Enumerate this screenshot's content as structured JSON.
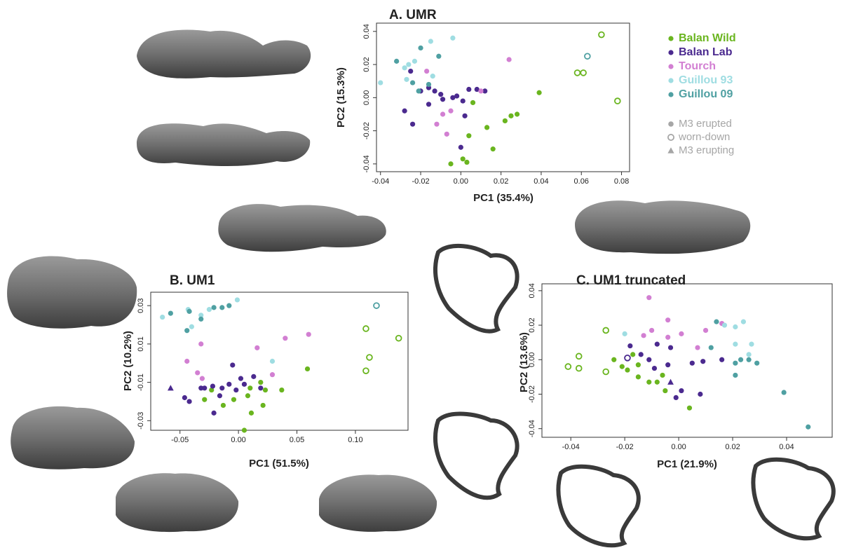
{
  "chart_data": [
    {
      "type": "scatter",
      "title": "A. UMR",
      "xlabel": "PC1 (35.4%)",
      "ylabel": "PC2 (15.3%)",
      "xlim": [
        -0.042,
        0.084
      ],
      "ylim": [
        -0.0447,
        0.045
      ],
      "xticks": [
        -0.04,
        -0.02,
        {
          "value": 0,
          "label": "0.00"
        },
        0.02,
        0.04,
        0.06,
        0.08
      ],
      "yticks": [
        -0.04,
        -0.02,
        {
          "value": 0,
          "label": "0.00"
        },
        0.02,
        0.04
      ],
      "series": [
        {
          "name": "Balan Wild",
          "color": "#6ab51f",
          "x": [
            0.039,
            0.028,
            0.025,
            0.022,
            0.013,
            0.006,
            0.004,
            0.016,
            0.003,
            -0.005,
            0.001,
            0.07,
            0.058,
            0.061,
            0.078
          ],
          "values": [
            0.003,
            -0.01,
            -0.011,
            -0.014,
            -0.018,
            -0.003,
            -0.023,
            -0.031,
            -0.039,
            -0.04,
            -0.037,
            0.038,
            0.015,
            0.015,
            -0.002
          ],
          "markers": [
            "filled",
            "filled",
            "filled",
            "filled",
            "filled",
            "filled",
            "filled",
            "filled",
            "filled",
            "filled",
            "filled",
            "open",
            "open",
            "open",
            "open"
          ]
        },
        {
          "name": "Balan Lab",
          "color": "#4b2a8f",
          "x": [
            -0.028,
            -0.024,
            -0.025,
            -0.016,
            -0.013,
            -0.01,
            -0.004,
            -0.002,
            0.001,
            0.004,
            0.008,
            0.012,
            0.002,
            0.0,
            -0.016,
            -0.009,
            -0.02
          ],
          "values": [
            -0.008,
            -0.016,
            0.016,
            0.006,
            0.004,
            0.002,
            0.0,
            0.001,
            -0.002,
            0.005,
            0.005,
            0.004,
            -0.011,
            -0.03,
            -0.004,
            -0.001,
            0.004
          ],
          "markers": [
            "filled",
            "filled",
            "filled",
            "filled",
            "filled",
            "filled",
            "filled",
            "filled",
            "filled",
            "filled",
            "filled",
            "filled",
            "filled",
            "filled",
            "filled",
            "filled",
            "filled"
          ]
        },
        {
          "name": "Tourch",
          "color": "#d27fd2",
          "x": [
            0.024,
            -0.009,
            -0.012,
            -0.007,
            -0.017,
            -0.005,
            0.01
          ],
          "values": [
            0.023,
            -0.01,
            -0.016,
            -0.022,
            0.016,
            -0.008,
            0.004
          ],
          "markers": [
            "filled",
            "filled",
            "filled",
            "filled",
            "filled",
            "filled",
            "filled"
          ]
        },
        {
          "name": "Guillou 93",
          "color": "#9fdde2",
          "x": [
            -0.04,
            -0.028,
            -0.026,
            -0.023,
            -0.015,
            -0.004,
            -0.027,
            -0.014
          ],
          "values": [
            0.009,
            0.018,
            0.02,
            0.022,
            0.034,
            0.036,
            0.011,
            0.013
          ],
          "markers": [
            "filled",
            "filled",
            "filled",
            "filled",
            "filled",
            "filled",
            "filled",
            "filled"
          ]
        },
        {
          "name": "Guillou 09",
          "color": "#4fa0a2",
          "x": [
            -0.032,
            -0.02,
            -0.011,
            -0.024,
            -0.021,
            -0.016,
            0.063
          ],
          "values": [
            0.022,
            0.03,
            0.025,
            0.009,
            0.004,
            0.008,
            0.025
          ],
          "markers": [
            "filled",
            "filled",
            "filled",
            "filled",
            "filled",
            "filled",
            "open"
          ]
        }
      ],
      "shape_legend_color": "#a6a6a6",
      "shape_legend": [
        {
          "label": "M3 erupted",
          "marker": "filled"
        },
        {
          "label": "worn-down",
          "marker": "open"
        },
        {
          "label": "M3 erupting",
          "marker": "triangle"
        }
      ]
    },
    {
      "type": "scatter",
      "title": "B. UM1",
      "xlabel": "PC1 (51.5%)",
      "ylabel": "PC2 (10.2%)",
      "xlim": [
        -0.075,
        0.145
      ],
      "ylim": [
        -0.035,
        0.037
      ],
      "xticks": [
        -0.05,
        {
          "value": 0,
          "label": "0.00"
        },
        0.05,
        {
          "value": 0.1,
          "label": "0.10"
        }
      ],
      "yticks": [
        -0.03,
        -0.01,
        0.01,
        0.03
      ],
      "series": [
        {
          "color": "#6ab51f",
          "x": [
            0.059,
            -0.029,
            -0.023,
            -0.013,
            -0.004,
            0.01,
            0.019,
            0.021,
            0.011,
            0.005,
            0.037,
            0.008,
            0.023,
            0.109,
            0.112,
            0.109,
            0.137
          ],
          "values": [
            -0.003,
            -0.019,
            -0.014,
            -0.022,
            -0.019,
            -0.013,
            -0.01,
            -0.022,
            -0.026,
            -0.035,
            -0.014,
            -0.017,
            -0.014,
            0.018,
            0.003,
            -0.004,
            0.013
          ],
          "markers": [
            "filled",
            "filled",
            "filled",
            "filled",
            "filled",
            "filled",
            "filled",
            "filled",
            "filled",
            "filled",
            "filled",
            "filled",
            "filled",
            "open",
            "open",
            "open",
            "open"
          ]
        },
        {
          "color": "#4b2a8f",
          "x": [
            -0.058,
            -0.046,
            -0.042,
            -0.032,
            -0.029,
            -0.022,
            -0.014,
            -0.008,
            -0.002,
            0.002,
            0.005,
            0.013,
            -0.005,
            -0.021,
            -0.016,
            0.019
          ],
          "values": [
            -0.013,
            -0.018,
            -0.02,
            -0.013,
            -0.013,
            -0.012,
            -0.013,
            -0.011,
            -0.014,
            -0.008,
            -0.011,
            -0.007,
            -0.001,
            -0.026,
            -0.017,
            -0.013
          ],
          "markers": [
            "triangle",
            "filled",
            "filled",
            "filled",
            "filled",
            "filled",
            "filled",
            "filled",
            "filled",
            "filled",
            "filled",
            "filled",
            "filled",
            "filled",
            "filled",
            "filled"
          ]
        },
        {
          "color": "#d27fd2",
          "x": [
            0.016,
            0.04,
            0.06,
            -0.044,
            -0.032,
            -0.031,
            0.029,
            -0.035
          ],
          "values": [
            0.008,
            0.013,
            0.015,
            0.001,
            0.01,
            -0.008,
            -0.006,
            -0.005
          ],
          "markers": [
            "filled",
            "filled",
            "filled",
            "filled",
            "filled",
            "filled",
            "filled",
            "filled"
          ]
        },
        {
          "color": "#9fdde2",
          "x": [
            -0.065,
            -0.043,
            -0.032,
            -0.025,
            -0.001,
            0.029,
            -0.04
          ],
          "values": [
            0.024,
            0.028,
            0.025,
            0.028,
            0.033,
            0.001,
            0.019
          ],
          "markers": [
            "filled",
            "filled",
            "filled",
            "filled",
            "filled",
            "filled",
            "filled"
          ]
        },
        {
          "color": "#4fa0a2",
          "x": [
            -0.058,
            -0.042,
            -0.021,
            -0.014,
            -0.008,
            -0.032,
            -0.044,
            0.118
          ],
          "values": [
            0.026,
            0.027,
            0.029,
            0.029,
            0.03,
            0.023,
            0.017,
            0.03
          ],
          "markers": [
            "filled",
            "filled",
            "filled",
            "filled",
            "filled",
            "filled",
            "filled",
            "open"
          ]
        }
      ]
    },
    {
      "type": "scatter",
      "title": "C. UM1 truncated",
      "xlabel": "PC1 (21.9%)",
      "ylabel": "PC2 (13.6%)",
      "xlim": [
        -0.0507,
        0.0569
      ],
      "ylim": [
        -0.045,
        0.044
      ],
      "xticks": [
        -0.04,
        -0.02,
        {
          "value": 0,
          "label": "0.00"
        },
        0.02,
        0.04
      ],
      "yticks": [
        -0.04,
        -0.02,
        {
          "value": 0,
          "label": "0.00"
        },
        0.02,
        0.04
      ],
      "series": [
        {
          "color": "#6ab51f",
          "x": [
            -0.024,
            -0.021,
            -0.019,
            -0.015,
            -0.011,
            -0.008,
            -0.006,
            0.004,
            -0.015,
            -0.005,
            -0.017,
            -0.037,
            -0.037,
            -0.041,
            -0.027,
            -0.027
          ],
          "values": [
            0.0,
            -0.004,
            -0.006,
            -0.01,
            -0.013,
            -0.013,
            -0.009,
            -0.028,
            -0.003,
            -0.018,
            0.003,
            -0.005,
            0.002,
            -0.004,
            -0.007,
            0.017
          ],
          "markers": [
            "filled",
            "filled",
            "filled",
            "filled",
            "filled",
            "filled",
            "filled",
            "filled",
            "filled",
            "filled",
            "filled",
            "open",
            "open",
            "open",
            "open",
            "open"
          ]
        },
        {
          "color": "#4b2a8f",
          "x": [
            -0.018,
            -0.014,
            -0.011,
            -0.009,
            -0.004,
            -0.001,
            0.001,
            0.005,
            0.009,
            0.016,
            0.008,
            -0.003,
            -0.008,
            -0.003,
            -0.019
          ],
          "values": [
            0.008,
            0.003,
            0.0,
            -0.005,
            -0.003,
            -0.022,
            -0.018,
            -0.002,
            -0.001,
            0.0,
            -0.02,
            0.007,
            0.009,
            -0.013,
            0.001
          ],
          "markers": [
            "filled",
            "filled",
            "filled",
            "filled",
            "filled",
            "filled",
            "filled",
            "filled",
            "filled",
            "filled",
            "filled",
            "filled",
            "filled",
            "triangle",
            "open"
          ]
        },
        {
          "color": "#d27fd2",
          "x": [
            -0.011,
            -0.004,
            0.001,
            -0.01,
            0.007,
            0.01,
            0.016,
            -0.004,
            -0.013
          ],
          "values": [
            0.036,
            0.023,
            0.015,
            0.017,
            0.007,
            0.017,
            0.021,
            0.013,
            0.014
          ],
          "markers": [
            "filled",
            "filled",
            "filled",
            "filled",
            "filled",
            "filled",
            "filled",
            "filled",
            "filled"
          ]
        },
        {
          "color": "#9fdde2",
          "x": [
            -0.02,
            0.017,
            0.021,
            0.024,
            0.026,
            0.027,
            0.021
          ],
          "values": [
            0.015,
            0.02,
            0.019,
            0.022,
            0.003,
            0.009,
            0.009
          ],
          "markers": [
            "filled",
            "filled",
            "filled",
            "filled",
            "filled",
            "filled",
            "filled"
          ]
        },
        {
          "color": "#4fa0a2",
          "x": [
            0.014,
            0.012,
            0.021,
            0.023,
            0.026,
            0.029,
            0.021,
            0.039,
            0.048
          ],
          "values": [
            0.022,
            0.007,
            -0.002,
            0.0,
            0.0,
            -0.002,
            -0.009,
            -0.019,
            -0.039
          ],
          "markers": [
            "filled",
            "filled",
            "filled",
            "filled",
            "filled",
            "filled",
            "filled",
            "filled",
            "filled"
          ]
        }
      ]
    }
  ]
}
